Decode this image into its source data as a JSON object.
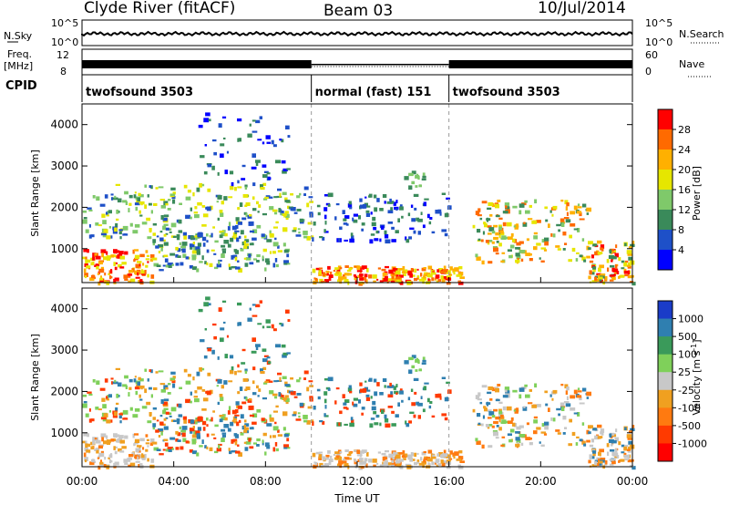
{
  "header": {
    "station": "Clyde River (fitACF)",
    "beam": "Beam 03",
    "date": "10/Jul/2014"
  },
  "top_panels": {
    "nsky_label": "N.Sky",
    "nsky_ticks": [
      "10^5",
      "10^0"
    ],
    "nsearch_label": "N.Search",
    "nsearch_ticks": [
      "10^5",
      "10^0"
    ],
    "freq_label": "Freq.",
    "freq_unit": "[MHz]",
    "freq_ticks": [
      "12",
      "8"
    ],
    "nave_label": "Nave",
    "nave_ticks": [
      "60",
      "0"
    ],
    "cpid_label": "CPID",
    "cpid_segments": [
      {
        "label": "twofsound 3503",
        "start_hr": 0,
        "end_hr": 10
      },
      {
        "label": "normal (fast) 151",
        "start_hr": 10,
        "end_hr": 16
      },
      {
        "label": "twofsound 3503",
        "start_hr": 16,
        "end_hr": 24
      }
    ]
  },
  "chart_data": [
    {
      "type": "heatmap",
      "panel": "power",
      "ylabel": "Slant Range [km]",
      "xlim_hr": [
        0,
        24
      ],
      "ylim": [
        180,
        4500
      ],
      "y_ticks": [
        1000,
        2000,
        3000,
        4000
      ],
      "colorbar_label": "Power [dB]",
      "colorbar_ticks": [
        "28",
        "24",
        "20",
        "16",
        "12",
        "8",
        "4"
      ],
      "colorbar_colors": [
        "#ff0000",
        "#ff6a00",
        "#ffb000",
        "#e6e600",
        "#7fc96a",
        "#3a8a5a",
        "#1e50c8",
        "#0000ff"
      ]
    },
    {
      "type": "heatmap",
      "panel": "velocity",
      "ylabel": "Slant Range [km]",
      "xlim_hr": [
        0,
        24
      ],
      "ylim": [
        180,
        4500
      ],
      "y_ticks": [
        1000,
        2000,
        3000,
        4000
      ],
      "x_ticks": [
        "00:00",
        "04:00",
        "08:00",
        "12:00",
        "16:00",
        "20:00",
        "00:00"
      ],
      "xlabel": "Time UT",
      "colorbar_label": "Velocity [m s",
      "colorbar_label_sup": "-1",
      "colorbar_label_end": "]",
      "colorbar_ticks": [
        "1000",
        "500",
        "100",
        "25",
        "-25",
        "-100",
        "-500",
        "-1000"
      ],
      "colorbar_colors": [
        "#1a3cc8",
        "#2f7fb0",
        "#3a9a5a",
        "#7fd05a",
        "#c8c8c8",
        "#f0a020",
        "#ff7a10",
        "#ff3a00",
        "#ff0000"
      ]
    }
  ]
}
